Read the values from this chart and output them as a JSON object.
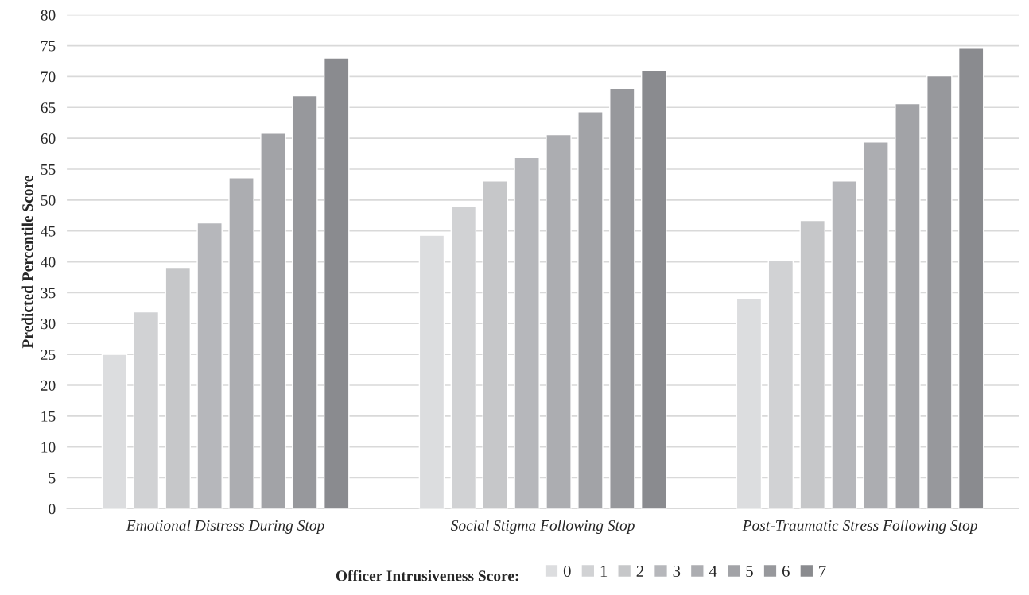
{
  "chart_data": {
    "type": "bar",
    "ylabel": "Predicted Percentile Score",
    "legend_title": "Officer Intrusiveness Score:",
    "categories": [
      "Emotional Distress During Stop",
      "Social Stigma Following Stop",
      "Post-Traumatic Stress Following Stop"
    ],
    "series": [
      {
        "name": "0",
        "color": "#dcdddf",
        "values": [
          25,
          44.3,
          34.1
        ]
      },
      {
        "name": "1",
        "color": "#d1d2d4",
        "values": [
          31.9,
          49,
          40.3
        ]
      },
      {
        "name": "2",
        "color": "#c6c7c9",
        "values": [
          39.1,
          53.1,
          46.7
        ]
      },
      {
        "name": "3",
        "color": "#b6b7bb",
        "values": [
          46.3,
          56.9,
          53.1
        ]
      },
      {
        "name": "4",
        "color": "#acadb1",
        "values": [
          53.6,
          60.6,
          59.4
        ]
      },
      {
        "name": "5",
        "color": "#a2a3a7",
        "values": [
          60.8,
          64.3,
          65.6
        ]
      },
      {
        "name": "6",
        "color": "#97989c",
        "values": [
          66.9,
          68.1,
          70.1
        ]
      },
      {
        "name": "7",
        "color": "#8a8b8f",
        "values": [
          73,
          71,
          74.6
        ]
      }
    ],
    "ylim": [
      0,
      80
    ],
    "yticks": [
      0,
      5,
      10,
      15,
      20,
      25,
      30,
      35,
      40,
      45,
      50,
      55,
      60,
      65,
      70,
      75,
      80
    ],
    "grid": "y",
    "legend": "bottom"
  }
}
